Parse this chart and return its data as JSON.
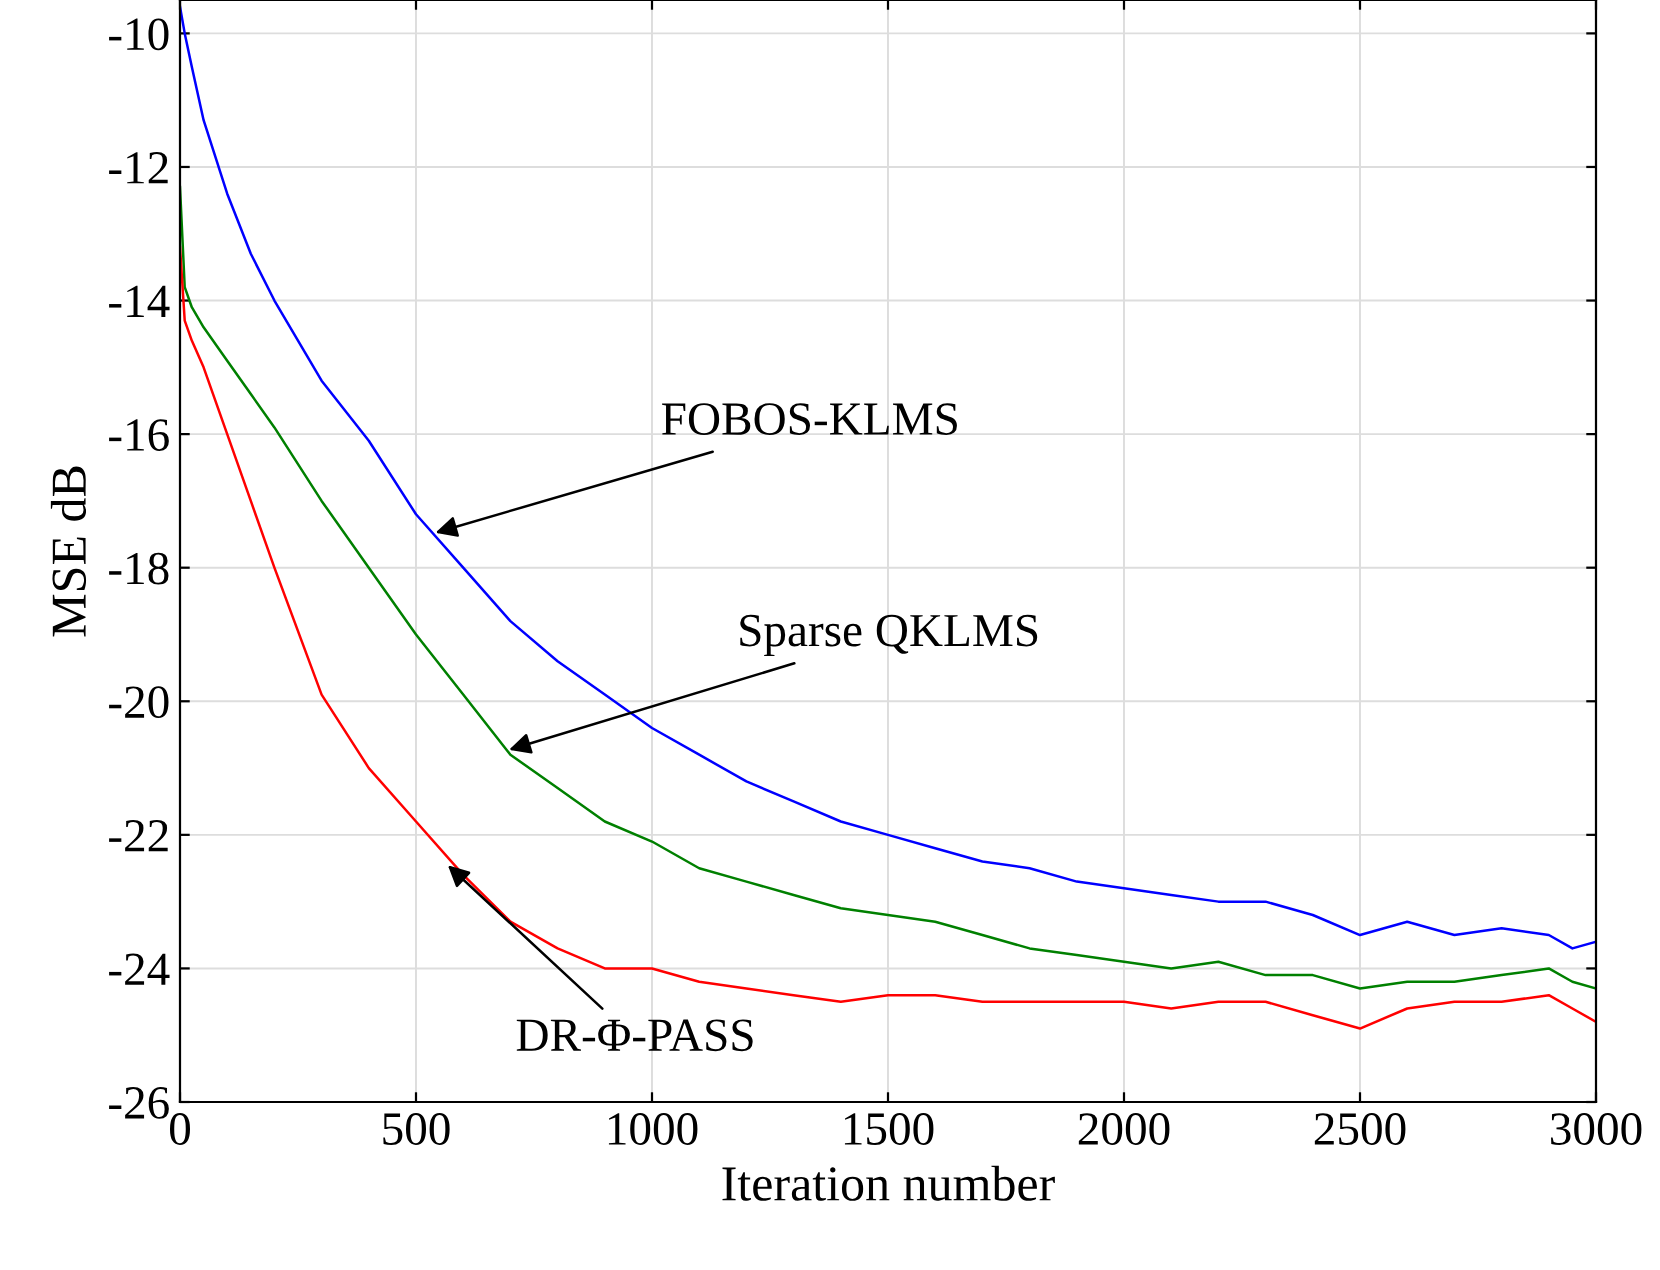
{
  "chart_data": {
    "type": "line",
    "xlabel": "Iteration number",
    "ylabel": "MSE dB",
    "xlim": [
      0,
      3000
    ],
    "ylim": [
      -26,
      -9.5
    ],
    "xticks": [
      0,
      500,
      1000,
      1500,
      2000,
      2500,
      3000
    ],
    "yticks": [
      -26,
      -24,
      -22,
      -20,
      -18,
      -16,
      -14,
      -12,
      -10
    ],
    "grid": true,
    "legend": false,
    "marker": "none",
    "line_style": "solid",
    "x": [
      0,
      10,
      25,
      50,
      100,
      150,
      200,
      300,
      400,
      500,
      600,
      700,
      800,
      900,
      1000,
      1100,
      1200,
      1300,
      1400,
      1500,
      1600,
      1700,
      1800,
      1900,
      2000,
      2100,
      2200,
      2300,
      2400,
      2500,
      2600,
      2700,
      2800,
      2900,
      2950,
      3000
    ],
    "series": [
      {
        "color": "#0000ff",
        "values": [
          -9.6,
          -10.0,
          -10.5,
          -11.3,
          -12.4,
          -13.3,
          -14.0,
          -15.2,
          -16.1,
          -17.2,
          -18.0,
          -18.8,
          -19.4,
          -19.9,
          -20.4,
          -20.8,
          -21.2,
          -21.5,
          -21.8,
          -22.0,
          -22.2,
          -22.4,
          -22.5,
          -22.7,
          -22.8,
          -22.9,
          -23.0,
          -23.0,
          -23.2,
          -23.5,
          -23.3,
          -23.5,
          -23.4,
          -23.5,
          -23.7,
          -23.6
        ]
      },
      {
        "color": "#008000",
        "values": [
          -12.3,
          -13.8,
          -14.1,
          -14.4,
          -14.9,
          -15.4,
          -15.9,
          -17.0,
          -18.0,
          -19.0,
          -19.9,
          -20.8,
          -21.3,
          -21.8,
          -22.1,
          -22.5,
          -22.7,
          -22.9,
          -23.1,
          -23.2,
          -23.3,
          -23.5,
          -23.7,
          -23.8,
          -23.9,
          -24.0,
          -23.9,
          -24.1,
          -24.1,
          -24.3,
          -24.2,
          -24.2,
          -24.1,
          -24.0,
          -24.2,
          -24.3
        ]
      },
      {
        "color": "#ff0000",
        "values": [
          -13.2,
          -14.3,
          -14.6,
          -15.0,
          -16.0,
          -17.0,
          -18.0,
          -19.9,
          -21.0,
          -21.8,
          -22.6,
          -23.3,
          -23.7,
          -24.0,
          -24.0,
          -24.2,
          -24.3,
          -24.4,
          -24.5,
          -24.4,
          -24.4,
          -24.5,
          -24.5,
          -24.5,
          -24.5,
          -24.6,
          -24.5,
          -24.5,
          -24.7,
          -24.9,
          -24.6,
          -24.5,
          -24.5,
          -24.4,
          -24.6,
          -24.8
        ]
      }
    ],
    "annotations": [
      {
        "text": "FOBOS-KLMS",
        "x": 530,
        "y": -17.5
      },
      {
        "text": "Sparse QKLMS",
        "x": 686,
        "y": -20.75
      },
      {
        "text": "DR-Φ-PASS",
        "x": 559,
        "y": -22.4
      }
    ]
  }
}
